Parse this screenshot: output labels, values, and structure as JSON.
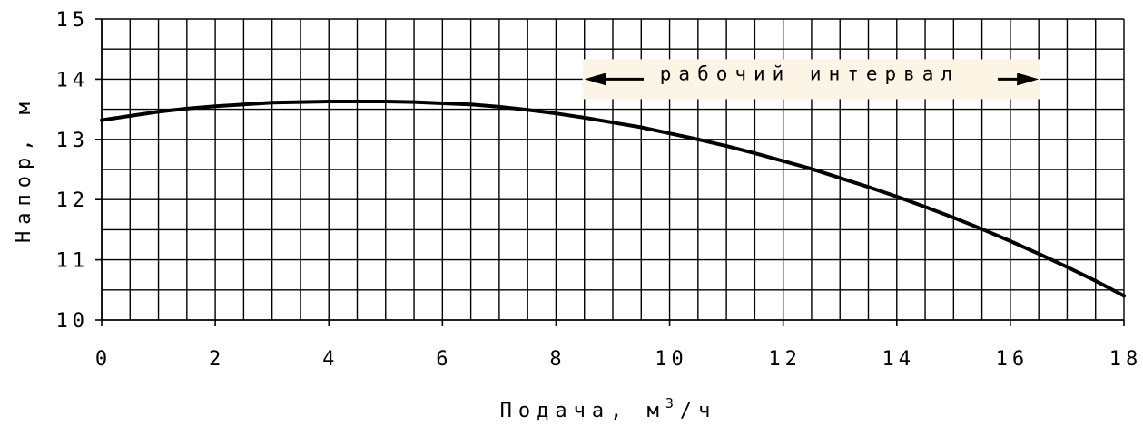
{
  "chart_data": {
    "type": "line",
    "title": "",
    "xlabel": "Подача, м",
    "xlabel_sup": "3",
    "xlabel_suffix": "/ч",
    "ylabel": "Напор, м",
    "xlim": [
      0,
      18
    ],
    "ylim": [
      10,
      15
    ],
    "x_ticks": [
      0,
      2,
      4,
      6,
      8,
      10,
      12,
      14,
      16,
      18
    ],
    "y_ticks": [
      10,
      11,
      12,
      13,
      14,
      15
    ],
    "x_minor_step": 0.5,
    "y_minor_step": 0.5,
    "grid": true,
    "line_color": "#000000",
    "series": [
      {
        "x": [
          0,
          0.5,
          1,
          1.5,
          2,
          2.5,
          3,
          3.5,
          4,
          4.5,
          5,
          5.5,
          6,
          6.5,
          7,
          7.5,
          8,
          8.5,
          9,
          9.5,
          10,
          10.5,
          11,
          11.5,
          12,
          12.5,
          13,
          13.5,
          14,
          14.5,
          15,
          15.5,
          16,
          16.5,
          17,
          17.5,
          18
        ],
        "y": [
          13.32,
          13.39,
          13.46,
          13.51,
          13.55,
          13.58,
          13.61,
          13.62,
          13.63,
          13.63,
          13.63,
          13.62,
          13.6,
          13.58,
          13.54,
          13.49,
          13.43,
          13.36,
          13.28,
          13.2,
          13.1,
          13.0,
          12.89,
          12.77,
          12.64,
          12.51,
          12.36,
          12.21,
          12.05,
          11.88,
          11.7,
          11.51,
          11.31,
          11.1,
          10.88,
          10.65,
          10.4
        ]
      }
    ],
    "annotation": {
      "text": "рабочий интервал",
      "x_start": 8.5,
      "x_end": 16.5,
      "y": 14,
      "background": "#fcf4e4"
    }
  }
}
